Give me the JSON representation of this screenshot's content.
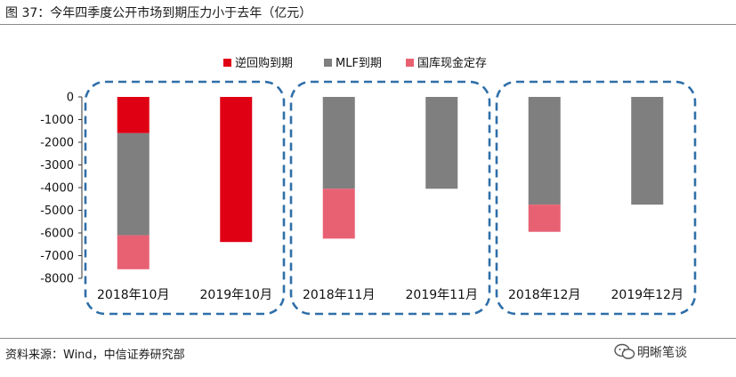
{
  "figure": {
    "title": "图 37：今年四季度公开市场到期压力小于去年（亿元）",
    "source": "资料来源：Wind，中信证券研究部",
    "watermark": "明晰笔谈"
  },
  "colors": {
    "reverse_repo": "#e00014",
    "mlf": "#7f7f7f",
    "treasury_deposit": "#e86173",
    "highlight_box": "#2f6fa8"
  },
  "chart_data": {
    "type": "bar",
    "stacked": true,
    "categories": [
      "2018年10月",
      "2019年10月",
      "2018年11月",
      "2019年11月",
      "2018年12月",
      "2019年12月"
    ],
    "series": [
      {
        "name": "逆回购到期",
        "values": [
          -1600,
          -6400,
          0,
          0,
          0,
          0
        ]
      },
      {
        "name": "MLF到期",
        "values": [
          -4500,
          0,
          -4050,
          -4050,
          -4750,
          -4750
        ]
      },
      {
        "name": "国库现金定存",
        "values": [
          -1500,
          0,
          -2200,
          0,
          -1200,
          0
        ]
      }
    ],
    "ylim": [
      -8000,
      0
    ],
    "yticks": [
      "0",
      "-1000",
      "-2000",
      "-3000",
      "-4000",
      "-5000",
      "-6000",
      "-7000",
      "-8000"
    ],
    "legend_position": "top",
    "grid": false,
    "highlight_groups": [
      [
        "2018年10月",
        "2019年10月"
      ],
      [
        "2018年11月",
        "2019年11月"
      ],
      [
        "2018年12月",
        "2019年12月"
      ]
    ]
  }
}
